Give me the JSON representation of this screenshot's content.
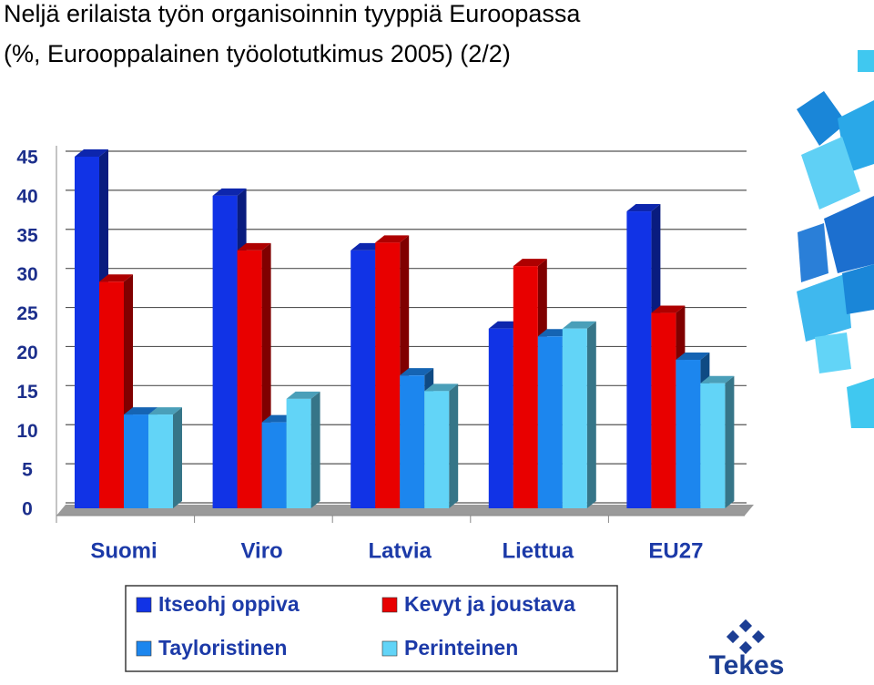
{
  "chart_data": {
    "type": "bar3d",
    "title": "Neljä erilaista työn organisoinnin tyyppiä Euroopassa",
    "subtitle": "(%, Eurooppalainen työolotutkimus 2005) (2/2)",
    "categories": [
      "Suomi",
      "Viro",
      "Latvia",
      "Liettua",
      "EU27"
    ],
    "series": [
      {
        "name": "Itseohj oppiva",
        "color": "#1133e6",
        "values": [
          45,
          40,
          33,
          23,
          38
        ]
      },
      {
        "name": "Kevyt ja joustava",
        "color": "#e80000",
        "values": [
          29,
          33,
          34,
          31,
          25
        ]
      },
      {
        "name": "Tayloristinen",
        "color": "#1c86ee",
        "values": [
          12,
          11,
          17,
          22,
          19
        ]
      },
      {
        "name": "Perinteinen",
        "color": "#62d4f7",
        "values": [
          12,
          14,
          15,
          23,
          16
        ]
      }
    ],
    "ylim": [
      0,
      45
    ],
    "yticks": [
      0,
      5,
      10,
      15,
      20,
      25,
      30,
      35,
      40,
      45
    ],
    "grid": true
  },
  "logo": "Tekes"
}
